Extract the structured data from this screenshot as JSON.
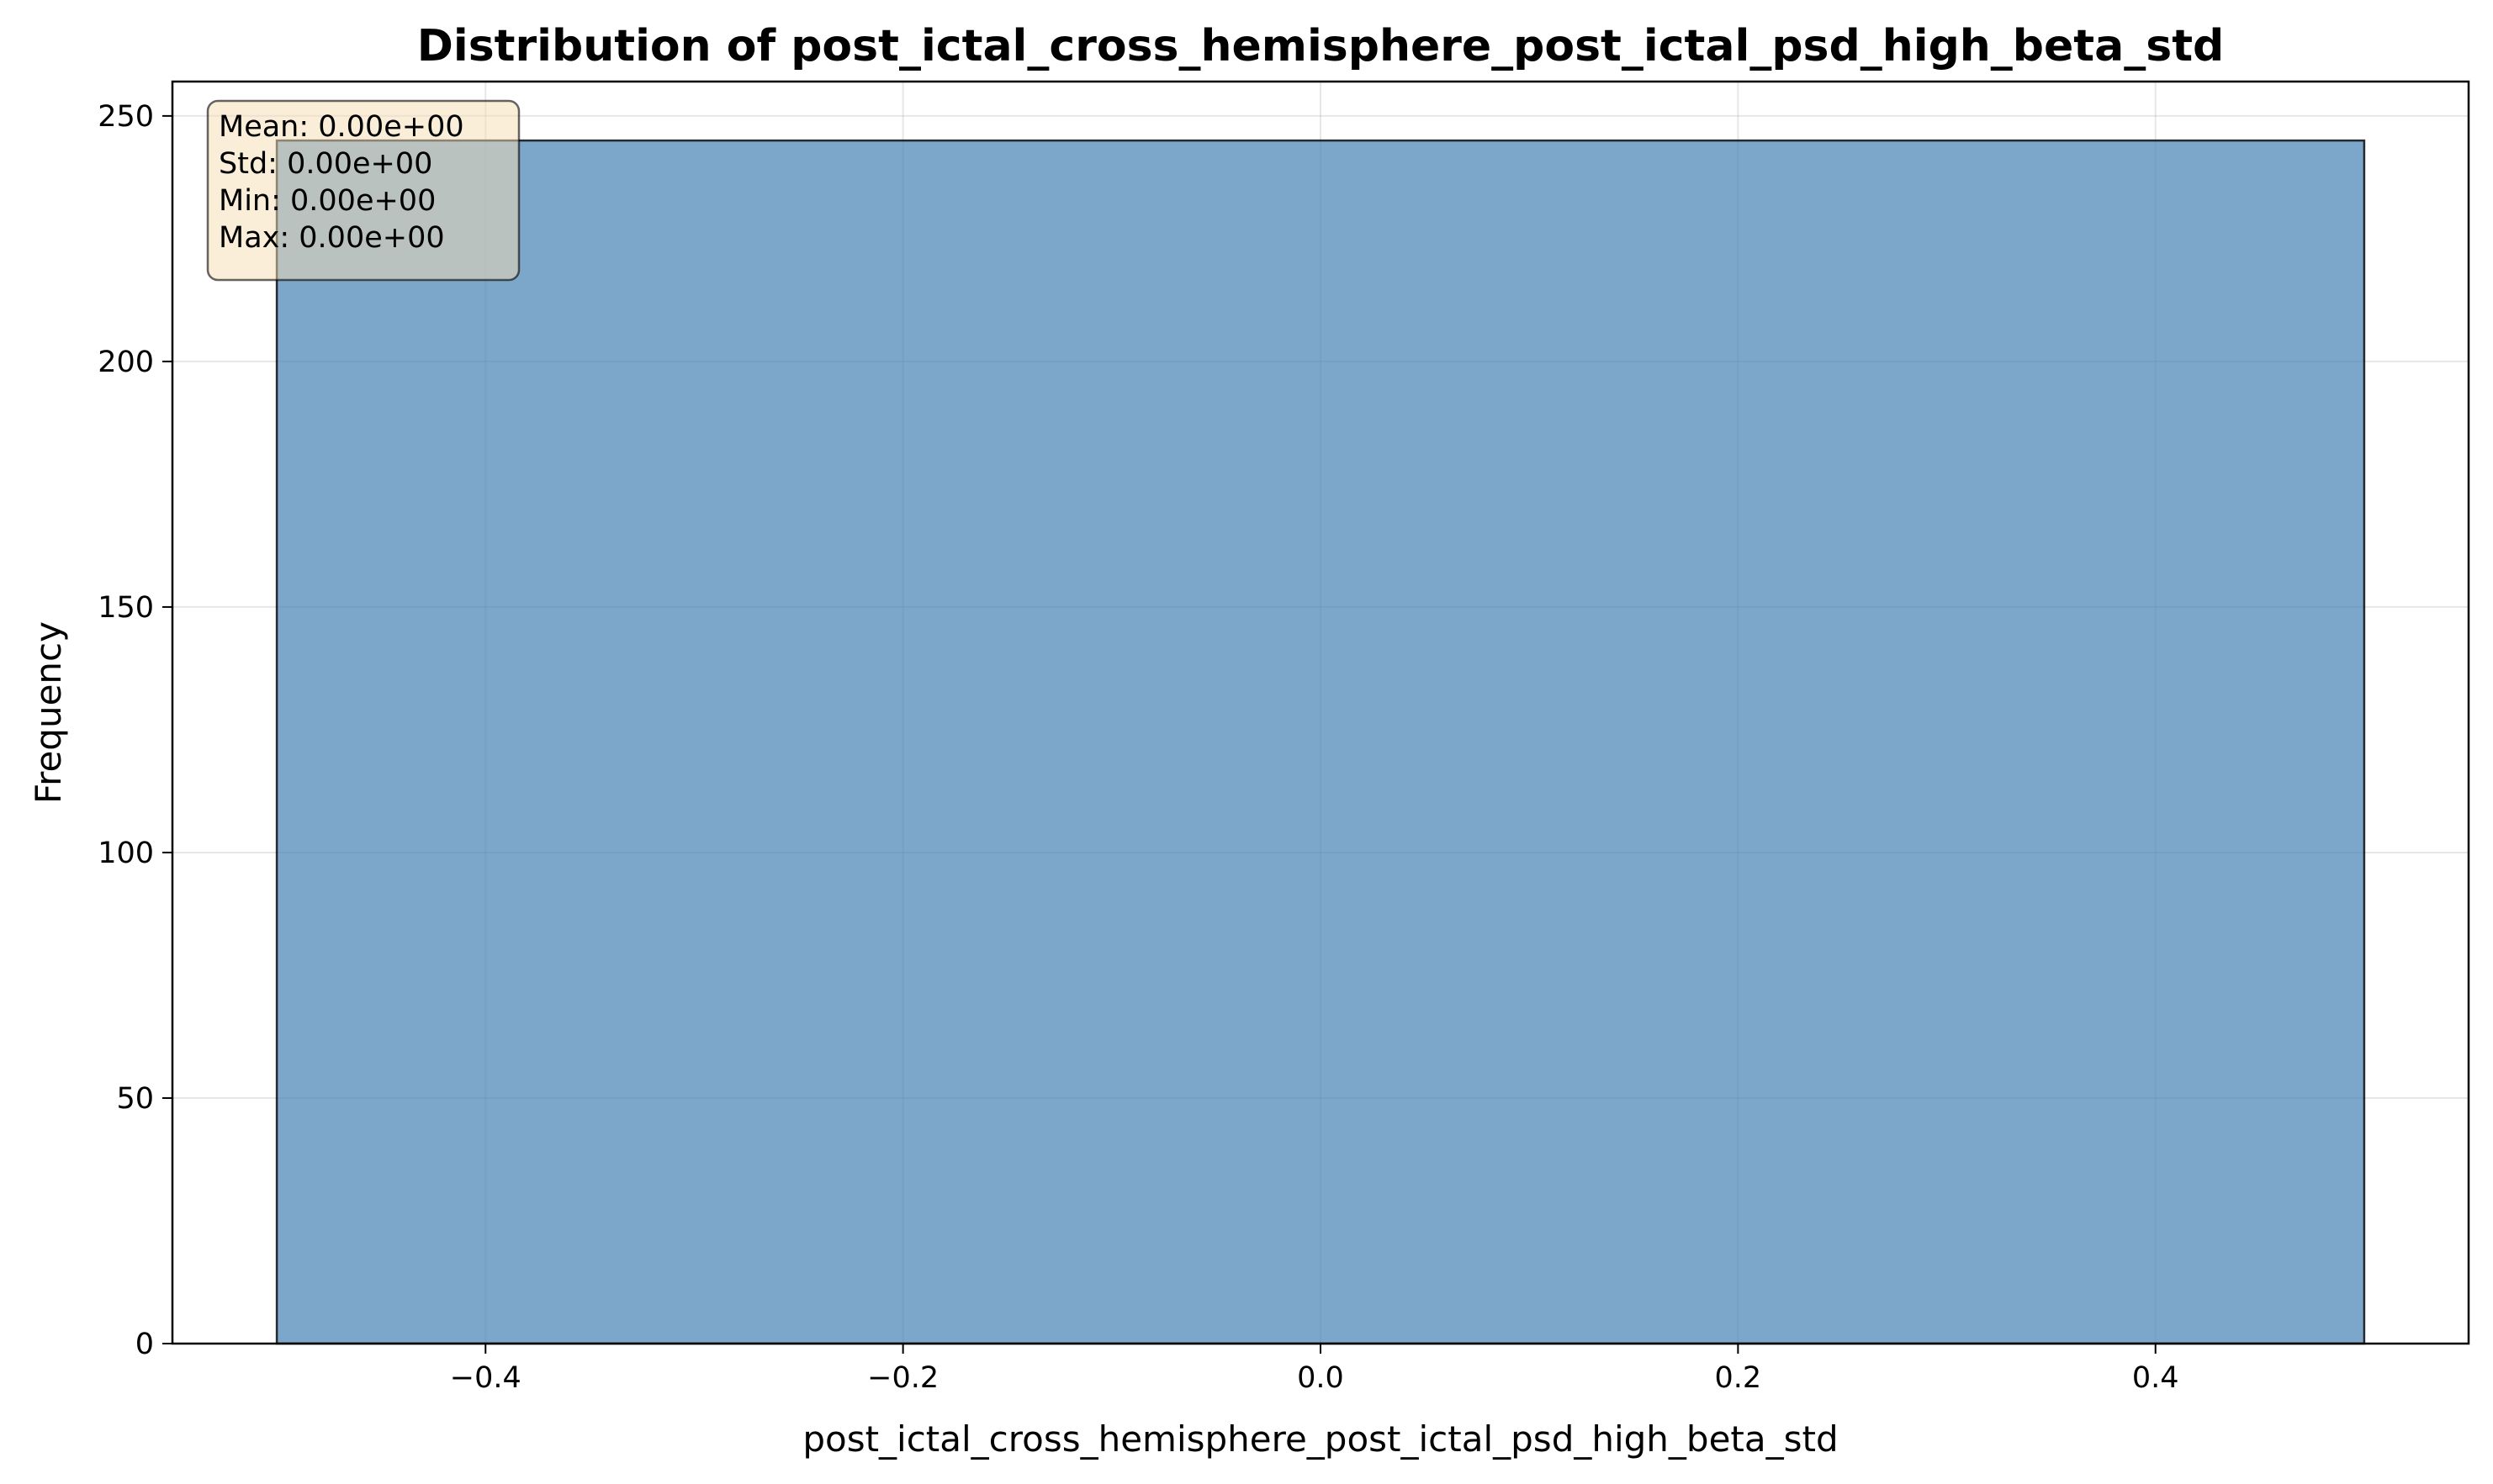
{
  "chart_data": {
    "type": "bar",
    "title": "Distribution of post_ictal_cross_hemisphere_post_ictal_psd_high_beta_std",
    "xlabel": "post_ictal_cross_hemisphere_post_ictal_psd_high_beta_std",
    "ylabel": "Frequency",
    "xlim": [
      -0.55,
      0.55
    ],
    "ylim": [
      0,
      257
    ],
    "x_ticks": [
      -0.4,
      -0.2,
      0.0,
      0.2,
      0.4
    ],
    "x_tick_labels": [
      "−0.4",
      "−0.2",
      "0.0",
      "0.2",
      "0.4"
    ],
    "y_ticks": [
      0,
      50,
      100,
      150,
      200,
      250
    ],
    "y_tick_labels": [
      "0",
      "50",
      "100",
      "150",
      "200",
      "250"
    ],
    "bins": [
      {
        "x0": -0.5,
        "x1": 0.5,
        "count": 245
      }
    ],
    "grid": true,
    "bar_color": "#4682b4",
    "bar_edge_color": "#000000",
    "stats_box": {
      "placement": "top-left",
      "background": "#f5deb3",
      "lines": [
        "Mean: 0.00e+00",
        "Std: 0.00e+00",
        "Min: 0.00e+00",
        "Max: 0.00e+00"
      ]
    }
  }
}
